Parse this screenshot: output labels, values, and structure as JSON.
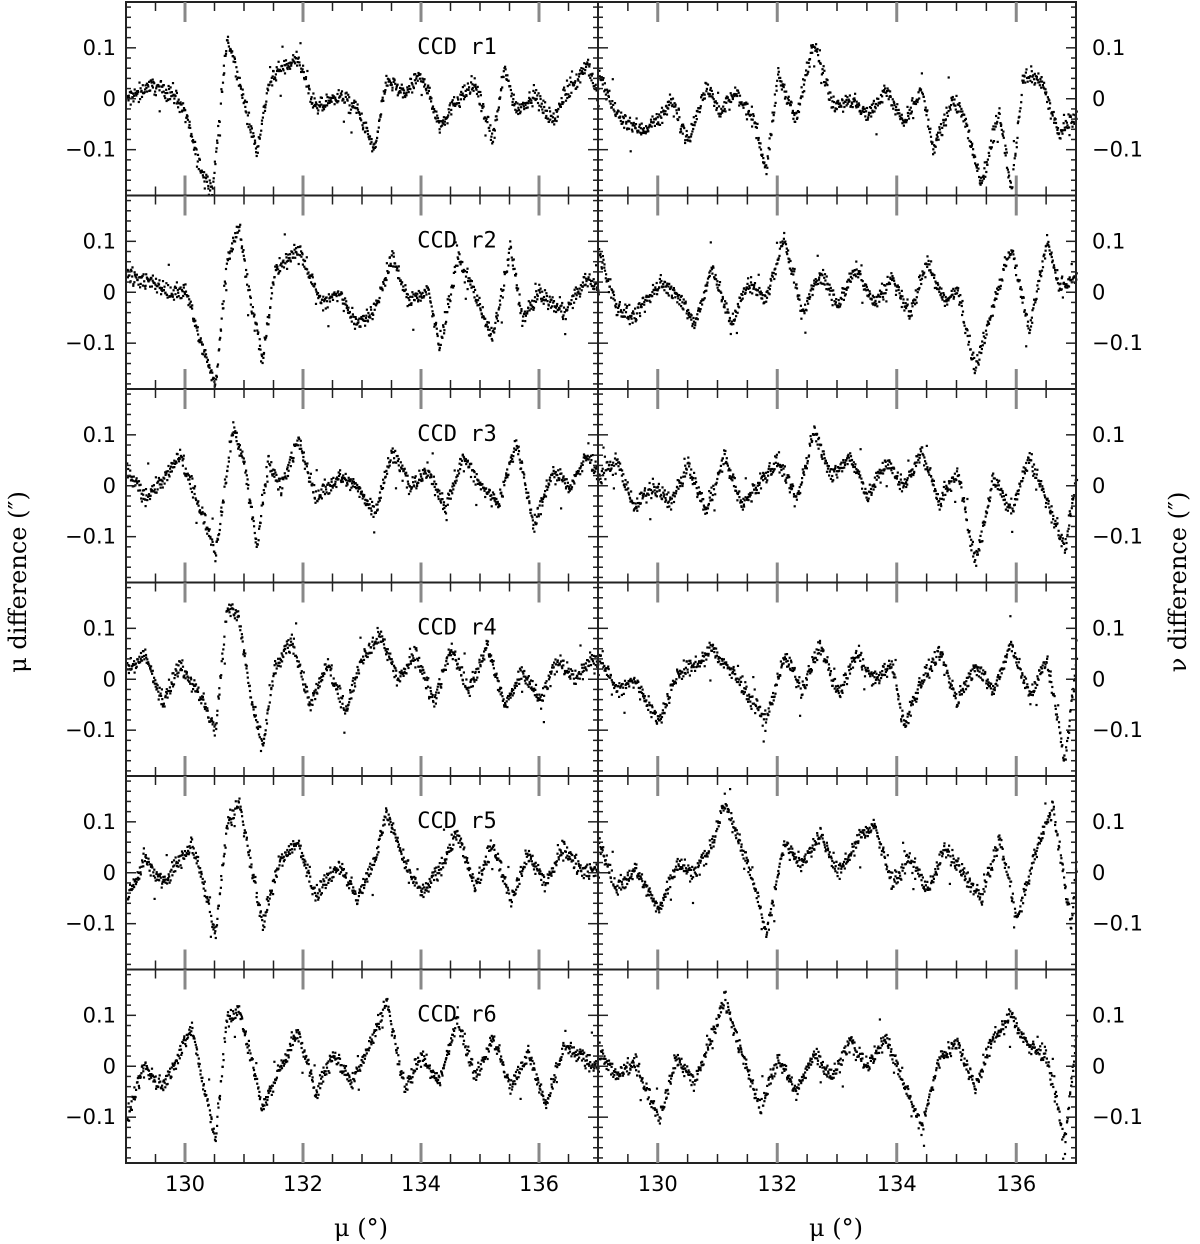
{
  "chart_data": {
    "type": "scatter",
    "layout": "6 rows x 2 columns of panels",
    "xlabel": "μ (°)",
    "ylabel_left": "μ difference (″)",
    "ylabel_right": "ν difference (″)",
    "xlim": [
      129,
      137
    ],
    "ylim": [
      -0.19,
      0.19
    ],
    "xticks": [
      130,
      132,
      134,
      136
    ],
    "xtick_labels": [
      "130",
      "132",
      "134",
      "136"
    ],
    "yticks": [
      -0.1,
      0,
      0.1
    ],
    "ytick_labels": [
      "−0.1",
      "0",
      "0.1"
    ],
    "grid": false,
    "panel_labels": [
      "CCD r1",
      "CCD r2",
      "CCD r3",
      "CCD r4",
      "CCD r5",
      "CCD r6"
    ],
    "panels": [
      {
        "row": 1,
        "quantity": "μ difference",
        "x": [
          129.0,
          129.4,
          129.8,
          130.0,
          130.2,
          130.45,
          130.55,
          130.7,
          130.85,
          131.0,
          131.2,
          131.4,
          131.6,
          131.9,
          132.2,
          132.6,
          132.9,
          133.2,
          133.4,
          133.7,
          134.0,
          134.3,
          134.6,
          134.9,
          135.2,
          135.4,
          135.6,
          135.9,
          136.2,
          136.5,
          136.8,
          137.0
        ],
        "y": [
          0.0,
          0.03,
          0.01,
          -0.03,
          -0.12,
          -0.18,
          -0.05,
          0.12,
          0.06,
          -0.01,
          -0.1,
          0.03,
          0.06,
          0.08,
          -0.02,
          0.01,
          -0.02,
          -0.1,
          0.04,
          0.01,
          0.05,
          -0.05,
          0.0,
          0.03,
          -0.08,
          0.06,
          -0.02,
          0.01,
          -0.04,
          0.02,
          0.07,
          0.0
        ]
      },
      {
        "row": 1,
        "quantity": "ν difference",
        "x": [
          129.0,
          129.3,
          129.7,
          130.0,
          130.2,
          130.5,
          130.8,
          131.0,
          131.3,
          131.6,
          131.8,
          132.0,
          132.3,
          132.6,
          132.9,
          133.2,
          133.5,
          133.8,
          134.1,
          134.4,
          134.6,
          134.9,
          135.1,
          135.4,
          135.7,
          135.9,
          136.1,
          136.4,
          136.7,
          137.0
        ],
        "y": [
          0.05,
          -0.03,
          -0.06,
          -0.04,
          0.0,
          -0.08,
          0.03,
          -0.02,
          0.01,
          -0.04,
          -0.14,
          0.05,
          -0.04,
          0.12,
          -0.01,
          0.0,
          -0.03,
          0.02,
          -0.05,
          0.02,
          -0.1,
          0.0,
          -0.03,
          -0.17,
          -0.02,
          -0.18,
          0.05,
          0.04,
          -0.07,
          -0.03
        ]
      },
      {
        "row": 2,
        "quantity": "μ difference",
        "x": [
          129.0,
          129.4,
          129.8,
          130.0,
          130.2,
          130.5,
          130.7,
          130.9,
          131.1,
          131.3,
          131.5,
          131.9,
          132.3,
          132.6,
          132.9,
          133.2,
          133.5,
          133.8,
          134.1,
          134.3,
          134.6,
          134.9,
          135.2,
          135.5,
          135.7,
          136.0,
          136.4,
          136.8,
          137.0
        ],
        "y": [
          0.04,
          0.02,
          0.0,
          0.01,
          -0.08,
          -0.18,
          0.07,
          0.13,
          -0.02,
          -0.13,
          0.04,
          0.09,
          -0.02,
          0.0,
          -0.06,
          -0.03,
          0.07,
          -0.02,
          0.01,
          -0.11,
          0.07,
          0.0,
          -0.09,
          0.09,
          -0.05,
          0.0,
          -0.04,
          0.03,
          0.0
        ]
      },
      {
        "row": 2,
        "quantity": "ν difference",
        "x": [
          129.0,
          129.3,
          129.6,
          130.0,
          130.3,
          130.6,
          130.9,
          131.2,
          131.5,
          131.8,
          132.1,
          132.4,
          132.7,
          133.0,
          133.3,
          133.6,
          133.9,
          134.2,
          134.5,
          134.8,
          135.0,
          135.3,
          135.6,
          135.9,
          136.2,
          136.5,
          136.7,
          137.0
        ],
        "y": [
          0.08,
          -0.03,
          -0.05,
          0.02,
          0.0,
          -0.06,
          0.05,
          -0.06,
          0.02,
          -0.01,
          0.11,
          -0.04,
          0.04,
          -0.02,
          0.05,
          -0.02,
          0.03,
          -0.04,
          0.06,
          -0.02,
          0.01,
          -0.15,
          -0.02,
          0.09,
          -0.07,
          0.1,
          0.01,
          0.03
        ]
      },
      {
        "row": 3,
        "quantity": "μ difference",
        "x": [
          129.0,
          129.3,
          129.6,
          129.9,
          130.1,
          130.3,
          130.5,
          130.8,
          131.0,
          131.2,
          131.4,
          131.6,
          131.9,
          132.2,
          132.6,
          132.9,
          133.2,
          133.5,
          133.8,
          134.1,
          134.4,
          134.7,
          135.0,
          135.3,
          135.6,
          135.9,
          136.2,
          136.5,
          136.8,
          137.0
        ],
        "y": [
          0.03,
          -0.02,
          0.01,
          0.06,
          0.0,
          -0.06,
          -0.13,
          0.12,
          0.04,
          -0.12,
          0.05,
          0.0,
          0.09,
          -0.02,
          0.02,
          0.0,
          -0.05,
          0.07,
          0.0,
          0.03,
          -0.04,
          0.06,
          0.0,
          -0.03,
          0.09,
          -0.08,
          0.03,
          0.0,
          0.06,
          0.02
        ]
      },
      {
        "row": 3,
        "quantity": "ν difference",
        "x": [
          129.0,
          129.3,
          129.6,
          129.9,
          130.2,
          130.5,
          130.8,
          131.1,
          131.4,
          131.7,
          132.0,
          132.3,
          132.6,
          132.9,
          133.2,
          133.5,
          133.8,
          134.1,
          134.4,
          134.7,
          135.0,
          135.3,
          135.6,
          135.9,
          136.2,
          136.5,
          136.8,
          137.0
        ],
        "y": [
          0.02,
          0.05,
          -0.04,
          0.0,
          -0.03,
          0.04,
          -0.05,
          0.06,
          -0.04,
          0.01,
          0.05,
          -0.03,
          0.11,
          0.02,
          0.06,
          -0.02,
          0.05,
          0.0,
          0.07,
          -0.03,
          0.03,
          -0.15,
          0.02,
          -0.05,
          0.06,
          -0.03,
          -0.12,
          0.02
        ]
      },
      {
        "row": 4,
        "quantity": "μ difference",
        "x": [
          129.0,
          129.3,
          129.6,
          129.9,
          130.2,
          130.5,
          130.7,
          130.9,
          131.1,
          131.3,
          131.5,
          131.8,
          132.1,
          132.4,
          132.7,
          133.0,
          133.3,
          133.6,
          133.9,
          134.2,
          134.5,
          134.8,
          135.1,
          135.4,
          135.7,
          136.0,
          136.3,
          136.6,
          136.9,
          137.0
        ],
        "y": [
          0.02,
          0.05,
          -0.04,
          0.03,
          -0.02,
          -0.1,
          0.15,
          0.12,
          -0.04,
          -0.13,
          0.02,
          0.08,
          -0.05,
          0.03,
          -0.06,
          0.05,
          0.09,
          0.0,
          0.05,
          -0.04,
          0.06,
          -0.02,
          0.07,
          -0.05,
          0.02,
          -0.04,
          0.04,
          0.0,
          0.05,
          0.02
        ]
      },
      {
        "row": 4,
        "quantity": "ν difference",
        "x": [
          129.0,
          129.3,
          129.6,
          130.0,
          130.3,
          130.6,
          130.9,
          131.2,
          131.5,
          131.8,
          132.1,
          132.4,
          132.7,
          133.0,
          133.3,
          133.6,
          133.9,
          134.1,
          134.4,
          134.7,
          135.0,
          135.3,
          135.6,
          135.9,
          136.2,
          136.5,
          136.8,
          137.0
        ],
        "y": [
          0.05,
          -0.02,
          0.0,
          -0.08,
          0.01,
          0.03,
          0.06,
          0.02,
          -0.03,
          -0.08,
          0.05,
          -0.02,
          0.07,
          -0.03,
          0.05,
          0.0,
          0.03,
          -0.09,
          0.0,
          0.05,
          -0.04,
          0.03,
          -0.02,
          0.07,
          -0.03,
          0.04,
          -0.16,
          0.05
        ]
      },
      {
        "row": 5,
        "quantity": "μ difference",
        "x": [
          129.0,
          129.3,
          129.6,
          129.9,
          130.1,
          130.3,
          130.5,
          130.7,
          130.9,
          131.1,
          131.3,
          131.6,
          131.9,
          132.2,
          132.6,
          132.9,
          133.2,
          133.4,
          133.7,
          134.0,
          134.3,
          134.6,
          134.9,
          135.2,
          135.5,
          135.8,
          136.1,
          136.4,
          136.7,
          137.0
        ],
        "y": [
          -0.05,
          0.03,
          -0.02,
          0.03,
          0.06,
          -0.02,
          -0.12,
          0.1,
          0.14,
          0.02,
          -0.1,
          0.03,
          0.06,
          -0.04,
          0.02,
          -0.05,
          0.03,
          0.12,
          0.02,
          -0.04,
          0.01,
          0.08,
          -0.03,
          0.06,
          -0.05,
          0.04,
          -0.02,
          0.05,
          0.01,
          0.0
        ]
      },
      {
        "row": 5,
        "quantity": "ν difference",
        "x": [
          129.0,
          129.3,
          129.6,
          130.0,
          130.3,
          130.6,
          130.9,
          131.1,
          131.4,
          131.6,
          131.8,
          132.1,
          132.4,
          132.7,
          133.0,
          133.3,
          133.6,
          133.9,
          134.2,
          134.5,
          134.8,
          135.1,
          135.4,
          135.7,
          136.0,
          136.3,
          136.6,
          136.9,
          137.0
        ],
        "y": [
          0.06,
          -0.03,
          0.01,
          -0.07,
          0.02,
          0.0,
          0.06,
          0.14,
          0.05,
          -0.02,
          -0.12,
          0.06,
          0.02,
          0.08,
          0.0,
          0.06,
          0.1,
          -0.02,
          0.03,
          -0.03,
          0.05,
          0.0,
          -0.05,
          0.07,
          -0.09,
          0.04,
          0.13,
          -0.1,
          0.02
        ]
      },
      {
        "row": 6,
        "quantity": "μ difference",
        "x": [
          129.0,
          129.3,
          129.6,
          129.9,
          130.1,
          130.3,
          130.5,
          130.7,
          130.9,
          131.1,
          131.3,
          131.6,
          131.9,
          132.2,
          132.5,
          132.8,
          133.1,
          133.4,
          133.7,
          134.0,
          134.3,
          134.6,
          134.9,
          135.2,
          135.5,
          135.8,
          136.1,
          136.4,
          136.7,
          137.0
        ],
        "y": [
          -0.1,
          0.0,
          -0.04,
          0.03,
          0.08,
          -0.04,
          -0.14,
          0.1,
          0.11,
          0.02,
          -0.08,
          0.0,
          0.07,
          -0.05,
          0.03,
          -0.03,
          0.04,
          0.13,
          -0.04,
          0.02,
          -0.03,
          0.1,
          -0.02,
          0.06,
          -0.04,
          0.03,
          -0.08,
          0.04,
          0.02,
          0.0
        ]
      },
      {
        "row": 6,
        "quantity": "ν difference",
        "x": [
          129.0,
          129.3,
          129.6,
          130.0,
          130.3,
          130.6,
          130.9,
          131.1,
          131.4,
          131.7,
          132.0,
          132.3,
          132.6,
          132.9,
          133.2,
          133.5,
          133.8,
          134.1,
          134.4,
          134.7,
          135.0,
          135.3,
          135.6,
          135.9,
          136.2,
          136.5,
          136.8,
          137.0
        ],
        "y": [
          0.03,
          -0.02,
          0.01,
          -0.1,
          0.02,
          -0.03,
          0.06,
          0.14,
          0.02,
          -0.08,
          0.02,
          -0.05,
          0.03,
          -0.02,
          0.05,
          0.0,
          0.06,
          -0.03,
          -0.12,
          0.02,
          0.05,
          -0.04,
          0.06,
          0.1,
          0.04,
          0.02,
          -0.15,
          0.08
        ]
      }
    ]
  }
}
